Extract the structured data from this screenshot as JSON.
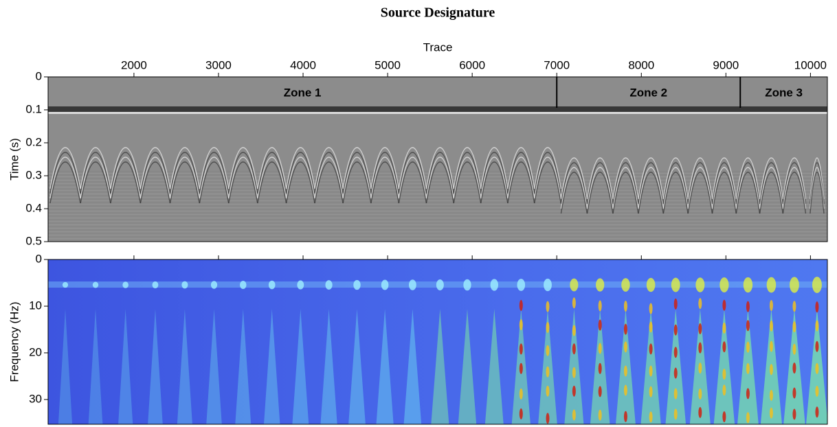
{
  "chart_data": [
    {
      "type": "seismic",
      "title": "Source Designature",
      "x_label": "Trace",
      "y_label": "Time (s)",
      "xlim": [
        985,
        10200
      ],
      "xticks": [
        2000,
        3000,
        4000,
        5000,
        6000,
        7000,
        8000,
        9000,
        10000
      ],
      "ylim": [
        0,
        0.5
      ],
      "yticks": [
        0,
        0.1,
        0.2,
        0.3,
        0.4,
        0.5
      ],
      "zones": [
        "Zone 1",
        "Zone 2",
        "Zone 3"
      ],
      "zone_boundaries": [
        7000,
        9170
      ]
    },
    {
      "type": "spectrogram",
      "y_label": "Frequency (Hz)",
      "xlim": [
        985,
        10200
      ],
      "xticks": [
        2000,
        3000,
        4000,
        5000,
        6000,
        7000,
        8000,
        9000,
        10000
      ],
      "ylim": [
        0,
        35.3
      ],
      "yticks": [
        0,
        10,
        20,
        30
      ]
    }
  ]
}
